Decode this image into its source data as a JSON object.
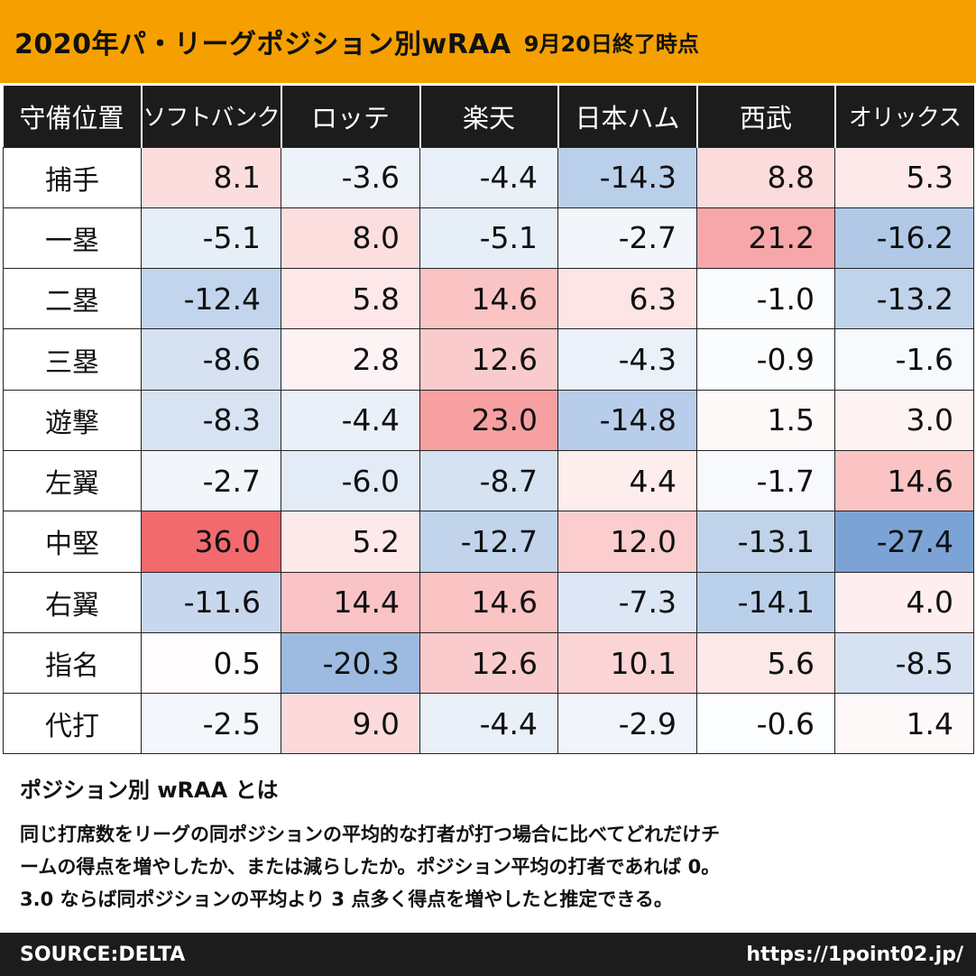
{
  "header": {
    "title": "2020年パ・リーグポジション別wRAA",
    "subtitle": "9月20日終了時点"
  },
  "chart_data": {
    "type": "table",
    "title": "2020年パ・リーグポジション別wRAA",
    "corner_label": "守備位置",
    "teams": [
      "ソフトバンク",
      "ロッテ",
      "楽天",
      "日本ハム",
      "西武",
      "オリックス"
    ],
    "positions": [
      "捕手",
      "一塁",
      "二塁",
      "三塁",
      "遊撃",
      "左翼",
      "中堅",
      "右翼",
      "指名",
      "代打"
    ],
    "values": [
      [
        8.1,
        -3.6,
        -4.4,
        -14.3,
        8.8,
        5.3
      ],
      [
        -5.1,
        8.0,
        -5.1,
        -2.7,
        21.2,
        -16.2
      ],
      [
        -12.4,
        5.8,
        14.6,
        6.3,
        -1.0,
        -13.2
      ],
      [
        -8.6,
        2.8,
        12.6,
        -4.3,
        -0.9,
        -1.6
      ],
      [
        -8.3,
        -4.4,
        23.0,
        -14.8,
        1.5,
        3.0
      ],
      [
        -2.7,
        -6.0,
        -8.7,
        4.4,
        -1.7,
        14.6
      ],
      [
        36.0,
        5.2,
        -12.7,
        12.0,
        -13.1,
        -27.4
      ],
      [
        -11.6,
        14.4,
        14.6,
        -7.3,
        -14.1,
        4.0
      ],
      [
        0.5,
        -20.3,
        12.6,
        10.1,
        5.6,
        -8.5
      ],
      [
        -2.5,
        9.0,
        -4.4,
        -2.9,
        -0.6,
        1.4
      ]
    ],
    "color_scale": {
      "positive": "#f26a6e",
      "negative": "#7ba3d6",
      "neutral": "#ffffff"
    }
  },
  "notes": {
    "title": "ポジション別 wRAA とは",
    "body_lines": [
      "同じ打席数をリーグの同ポジションの平均的な打者が打つ場合に比べてどれだけチ",
      "ームの得点を増やしたか、または減らしたか。ポジション平均の打者であれば 0。",
      "3.0 ならば同ポジションの平均より 3 点多く得点を増やしたと推定できる。"
    ]
  },
  "footer": {
    "source": "SOURCE:DELTA",
    "url": "https://1point02.jp/"
  }
}
